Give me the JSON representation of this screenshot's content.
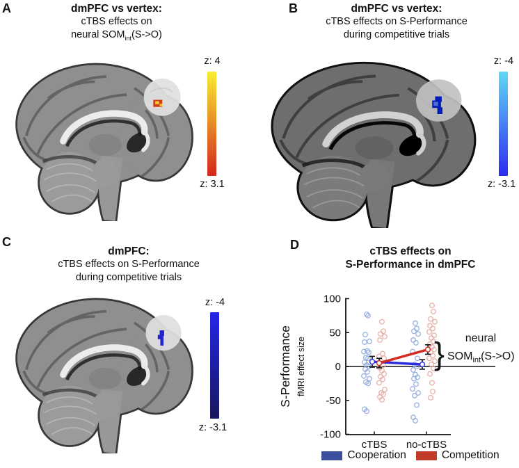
{
  "panels": {
    "A": {
      "letter": "A",
      "title_bold": "dmPFC vs vertex:",
      "title_line2": "cTBS effects on",
      "title_line3_pre": "neural SOM",
      "title_line3_sub": "int",
      "title_line3_post": "(S->O)",
      "colorbar": {
        "top_label": "z: 4",
        "bottom_label": "z: 3.1",
        "top_color": "#f8ee30",
        "bottom_color": "#d4261d"
      },
      "activation_main": "#d23b17",
      "activation_highlight": "#f5c62e"
    },
    "B": {
      "letter": "B",
      "title_bold": "dmPFC vs vertex:",
      "title_line2": "cTBS effects on S-Performance",
      "title_line3": "during competitive trials",
      "colorbar": {
        "top_label": "z: -4",
        "bottom_label": "z: -3.1",
        "top_color": "#5fd8f8",
        "bottom_color": "#2b2bf2"
      },
      "activation_main": "#2b43d6",
      "activation_highlight": "#6f8ff0"
    },
    "C": {
      "letter": "C",
      "title_bold": "dmPFC:",
      "title_line2": "cTBS effects on S-Performance",
      "title_line3": "during competitive trials",
      "colorbar": {
        "top_label": "z: -4",
        "bottom_label": "z: -3.1",
        "top_color": "#2525e8",
        "bottom_color": "#17175e"
      },
      "activation_main": "#2222cf",
      "activation_highlight": "#4a4ae0"
    },
    "D": {
      "letter": "D",
      "title_line1": "cTBS effects on",
      "title_line2": "S-Performance in dmPFC"
    }
  },
  "chart_data": {
    "type": "scatter",
    "title": "cTBS effects on S-Performance in dmPFC",
    "ylabel_main": "S-Performance",
    "ylabel_sub": "fMRI effect size",
    "ylim": [
      -100,
      100
    ],
    "yticks": [
      100,
      50,
      0,
      -50,
      -100
    ],
    "categories": [
      "cTBS",
      "no-cTBS"
    ],
    "grid": false,
    "legend_position": "bottom",
    "legend": [
      {
        "label": "Cooperation",
        "color": "#3c4f9e"
      },
      {
        "label": "Competition",
        "color": "#bf3b28"
      }
    ],
    "series": [
      {
        "name": "Cooperation",
        "line_color": "#2b2be0",
        "point_color": "#92acdf",
        "means": [
          7,
          3
        ],
        "errors": [
          8,
          7
        ],
        "points_cTBS": [
          77,
          75,
          47,
          37,
          36,
          23,
          22,
          21,
          13,
          12,
          6,
          2,
          0,
          -4,
          -8,
          -14,
          -18,
          -23,
          -25,
          -63,
          -66
        ],
        "points_no_cTBS": [
          64,
          56,
          52,
          48,
          39,
          35,
          22,
          12,
          3,
          0,
          -5,
          -12,
          -16,
          -18,
          -26,
          -33,
          -39,
          -43,
          -57,
          -75,
          -80
        ]
      },
      {
        "name": "Competition",
        "line_color": "#d42a20",
        "point_color": "#e7aca4",
        "means": [
          5,
          25
        ],
        "errors": [
          7,
          7
        ],
        "points_cTBS": [
          66,
          52,
          48,
          44,
          39,
          19,
          15,
          12,
          7,
          2,
          -2,
          -6,
          -11,
          -15,
          -19,
          -24,
          -34,
          -39,
          -41,
          -45,
          -49
        ],
        "points_no_cTBS": [
          90,
          81,
          70,
          66,
          60,
          56,
          51,
          46,
          42,
          37,
          33,
          29,
          25,
          21,
          16,
          12,
          8,
          3,
          -3,
          -11,
          -24,
          -37,
          -46
        ]
      }
    ],
    "annotation": {
      "brace": "}",
      "line1": "neural",
      "line2_pre": "SOM",
      "line2_sub": "int",
      "line2_post": "(S->O)"
    },
    "axis_color": "#111111"
  }
}
